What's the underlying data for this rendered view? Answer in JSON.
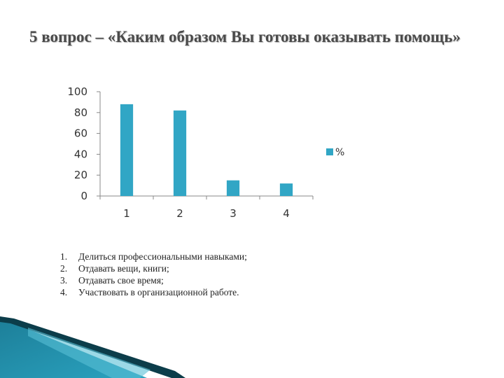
{
  "title": "5 вопрос – «Каким образом Вы готовы оказывать помощь»",
  "chart_data": {
    "type": "bar",
    "categories": [
      "1",
      "2",
      "3",
      "4"
    ],
    "series": [
      {
        "name": "%",
        "values": [
          88,
          82,
          15,
          12
        ]
      }
    ],
    "ylim": [
      0,
      100
    ],
    "yticks": [
      0,
      20,
      40,
      60,
      80,
      100
    ],
    "grid": false,
    "legend_position": "right",
    "bar_color": "#31a6c5"
  },
  "notes": [
    {
      "num": "1.",
      "text": "Делиться профессиональными навыками;"
    },
    {
      "num": "2.",
      "text": "Отдавать вещи, книги;"
    },
    {
      "num": "3.",
      "text": "Отдавать свое время;"
    },
    {
      "num": "4.",
      "text": "Участвовать в организационной работе."
    }
  ],
  "colors": {
    "accent": "#1a7a94",
    "dark": "#0c3d4a"
  }
}
